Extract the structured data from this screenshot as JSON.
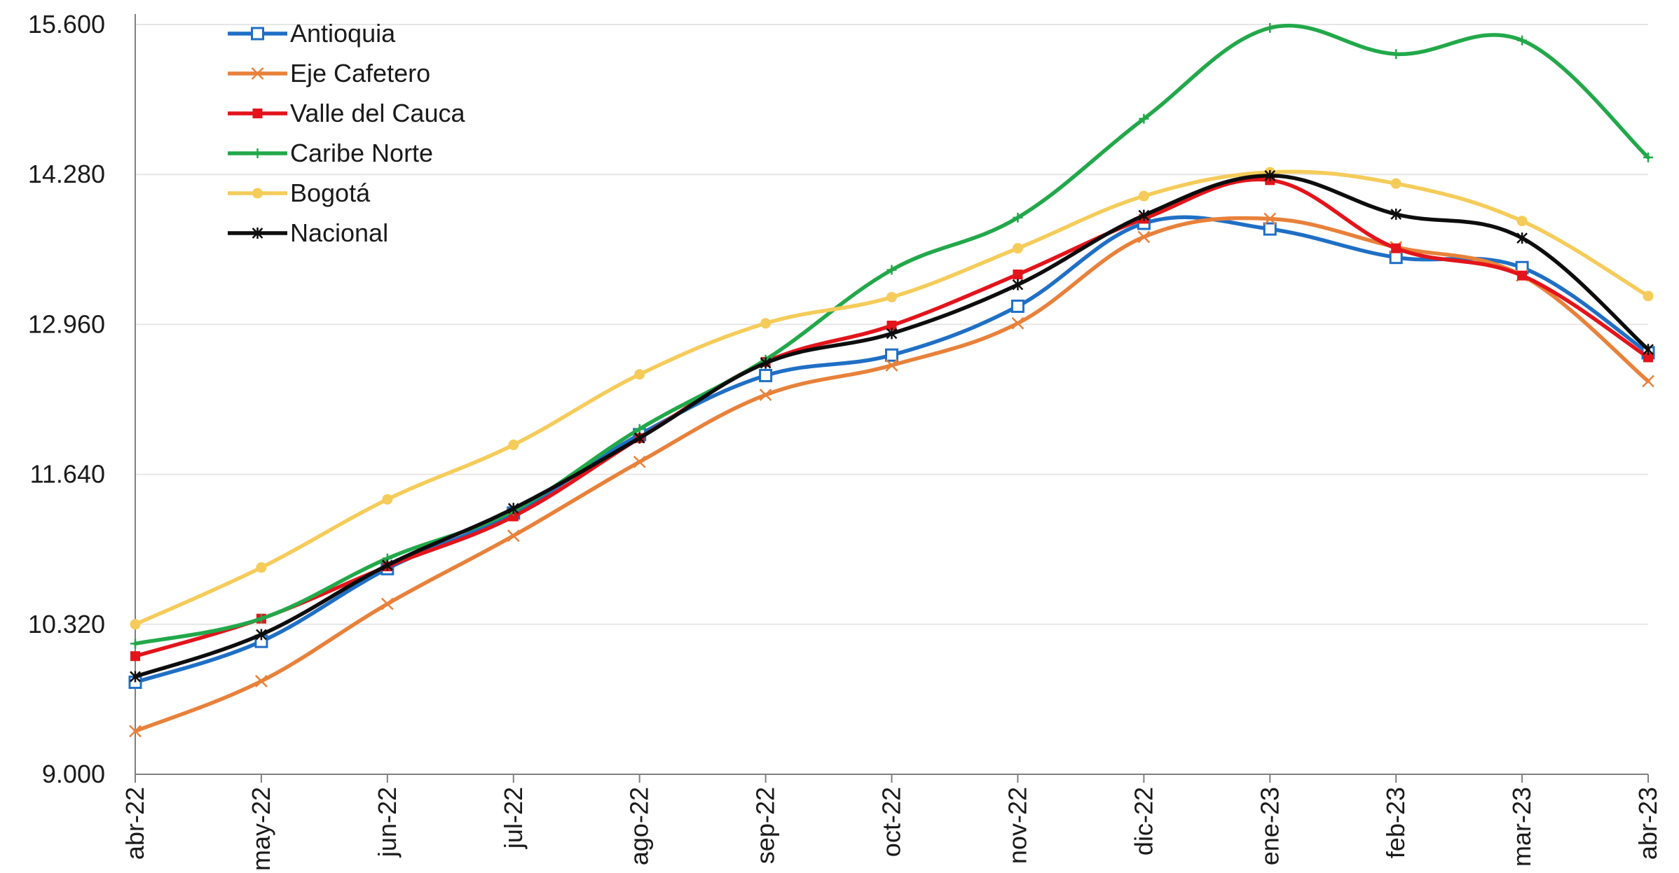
{
  "chart_data": {
    "type": "line",
    "title": "",
    "xlabel": "",
    "ylabel": "",
    "ylim": [
      9000,
      15600
    ],
    "yticks": [
      "9.000",
      "10.320",
      "11.640",
      "12.960",
      "14.280",
      "15.600"
    ],
    "ytick_values": [
      9000,
      10320,
      11640,
      12960,
      14280,
      15600
    ],
    "grid": true,
    "legend_position": "top-left",
    "categories": [
      "abr-22",
      "may-22",
      "jun-22",
      "jul-22",
      "ago-22",
      "sep-22",
      "oct-22",
      "nov-22",
      "dic-22",
      "ene-23",
      "feb-23",
      "mar-23",
      "abr-23"
    ],
    "series": [
      {
        "name": "Antioquia",
        "color": "#1f6fc5",
        "marker": "square-open",
        "values": [
          9810,
          10170,
          10810,
          11300,
          11990,
          12510,
          12690,
          13120,
          13850,
          13800,
          13550,
          13460,
          12710
        ]
      },
      {
        "name": "Eje Cafetero",
        "color": "#e8813a",
        "marker": "x",
        "values": [
          9380,
          9820,
          10500,
          11100,
          11750,
          12340,
          12600,
          12970,
          13730,
          13890,
          13640,
          13390,
          12460
        ]
      },
      {
        "name": "Valle del Cauca",
        "color": "#e3141b",
        "marker": "square-filled",
        "values": [
          10040,
          10370,
          10830,
          11270,
          11960,
          12630,
          12950,
          13400,
          13890,
          14230,
          13630,
          13390,
          12670
        ]
      },
      {
        "name": "Caribe Norte",
        "color": "#22a84a",
        "marker": "plus",
        "values": [
          10150,
          10370,
          10900,
          11320,
          12040,
          12650,
          13440,
          13900,
          14770,
          15570,
          15340,
          15460,
          14430
        ]
      },
      {
        "name": "Bogotá",
        "color": "#f5cc5a",
        "marker": "dot",
        "values": [
          10320,
          10820,
          11420,
          11900,
          12520,
          12970,
          13200,
          13630,
          14090,
          14300,
          14200,
          13870,
          13210
        ]
      },
      {
        "name": "Nacional",
        "color": "#0d0d0d",
        "marker": "star",
        "values": [
          9860,
          10230,
          10840,
          11340,
          11960,
          12620,
          12880,
          13310,
          13920,
          14270,
          13930,
          13720,
          12740
        ]
      }
    ]
  }
}
